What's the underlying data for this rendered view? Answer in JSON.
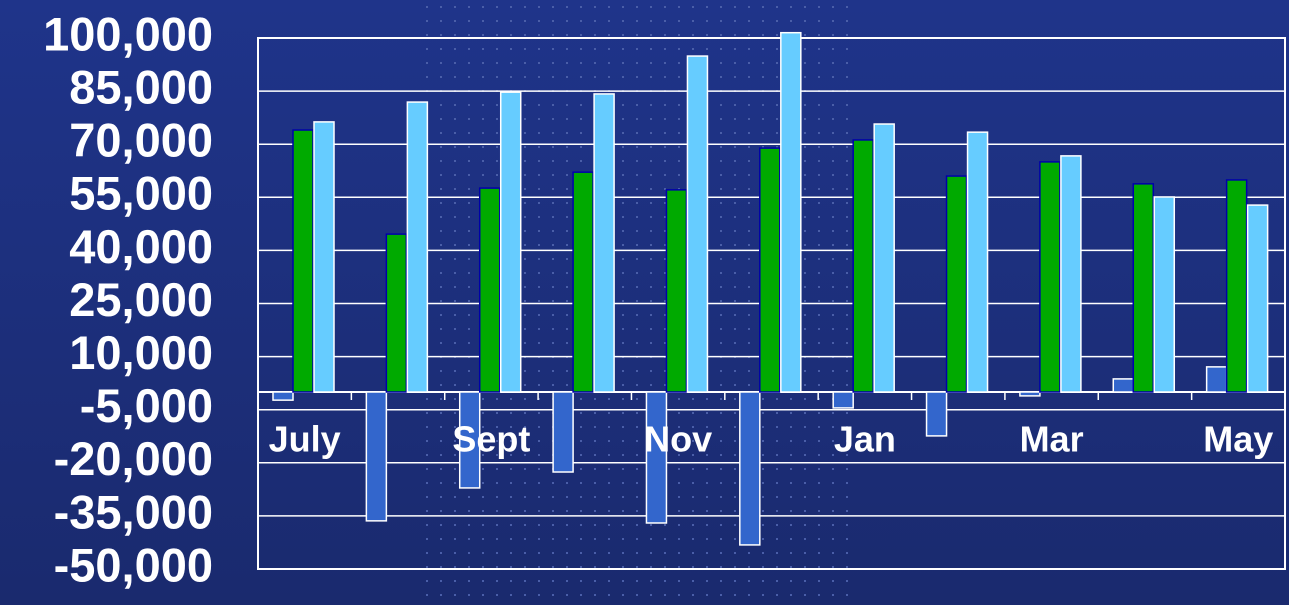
{
  "chart_data": {
    "type": "bar",
    "categories": [
      "July",
      null,
      "Sept",
      null,
      "Nov",
      null,
      "Jan",
      null,
      "Mar",
      null,
      "May"
    ],
    "series": [
      {
        "color": "#3366cc",
        "values": [
          -2300,
          -36400,
          -27100,
          -22600,
          -37000,
          -43200,
          -4500,
          -12400,
          -1100,
          3700,
          7100
        ]
      },
      {
        "color": "#00aa00",
        "values": [
          74000,
          44600,
          57600,
          62100,
          57100,
          68900,
          71200,
          61000,
          65000,
          58800,
          59900
        ]
      },
      {
        "color": "#66ccff",
        "values": [
          76300,
          81900,
          84700,
          84200,
          94900,
          101500,
          75700,
          73400,
          66700,
          55100,
          52800
        ]
      }
    ],
    "ylim": [
      -50000,
      100000
    ],
    "yticks": [
      {
        "value": 100000,
        "label": "100,000"
      },
      {
        "value": 85000,
        "label": "85,000"
      },
      {
        "value": 70000,
        "label": "70,000"
      },
      {
        "value": 55000,
        "label": "55,000"
      },
      {
        "value": 40000,
        "label": "40,000"
      },
      {
        "value": 25000,
        "label": "25,000"
      },
      {
        "value": 10000,
        "label": "10,000"
      },
      {
        "value": -5000,
        "label": "-5,000"
      },
      {
        "value": -20000,
        "label": "-20,000"
      },
      {
        "value": -35000,
        "label": "-35,000"
      },
      {
        "value": -50000,
        "label": "-50,000"
      }
    ],
    "grid": true
  }
}
